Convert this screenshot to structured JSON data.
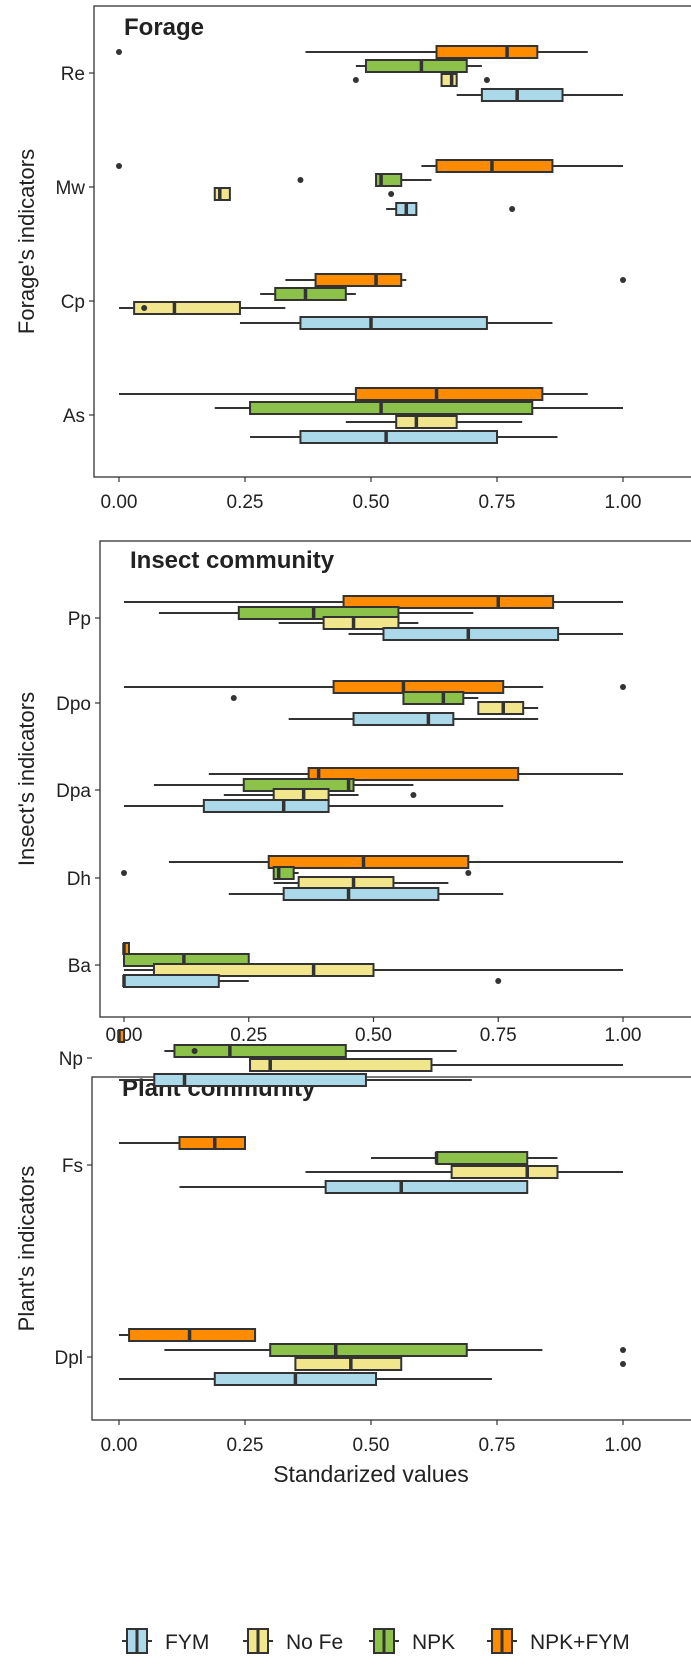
{
  "chart_data": {
    "type": "boxplot",
    "orientation": "horizontal",
    "xlabel": "Standarized values",
    "xlim": [
      0,
      1
    ],
    "x_ticks": [
      "0.00",
      "0.25",
      "0.50",
      "0.75",
      "1.00"
    ],
    "tick_values": [
      0,
      0.25,
      0.5,
      0.75,
      1
    ],
    "legend": {
      "position": "bottom",
      "entries": [
        {
          "name": "FYM",
          "color": "#abd9e9"
        },
        {
          "name": "No Fe",
          "color": "#f1e68c"
        },
        {
          "name": "NPK",
          "color": "#8cc24a"
        },
        {
          "name": "NPK+FYM",
          "color": "#ff8c00"
        }
      ]
    },
    "panels": [
      {
        "title": "Forage",
        "ylabel": "Forage's indicators",
        "categories": [
          {
            "label": "Re",
            "boxes": [
              {
                "group": "NPK+FYM",
                "whisker_low": 0.37,
                "q1": 0.63,
                "median": 0.77,
                "q3": 0.83,
                "whisker_high": 0.93,
                "outliers": [
                  0.0
                ]
              },
              {
                "group": "NPK",
                "whisker_low": 0.47,
                "q1": 0.49,
                "median": 0.6,
                "q3": 0.69,
                "whisker_high": 0.72,
                "outliers": []
              },
              {
                "group": "No Fe",
                "whisker_low": 0.64,
                "q1": 0.64,
                "median": 0.66,
                "q3": 0.67,
                "whisker_high": 0.67,
                "outliers": [
                  0.47,
                  0.73
                ]
              },
              {
                "group": "FYM",
                "whisker_low": 0.67,
                "q1": 0.72,
                "median": 0.79,
                "q3": 0.88,
                "whisker_high": 1.0,
                "outliers": []
              }
            ]
          },
          {
            "label": "Mw",
            "boxes": [
              {
                "group": "NPK+FYM",
                "whisker_low": 0.6,
                "q1": 0.63,
                "median": 0.74,
                "q3": 0.86,
                "whisker_high": 1.0,
                "outliers": [
                  0.0
                ]
              },
              {
                "group": "NPK",
                "whisker_low": 0.51,
                "q1": 0.51,
                "median": 0.52,
                "q3": 0.56,
                "whisker_high": 0.62,
                "outliers": [
                  0.36
                ]
              },
              {
                "group": "No Fe",
                "whisker_low": 0.19,
                "q1": 0.19,
                "median": 0.2,
                "q3": 0.22,
                "whisker_high": 0.22,
                "outliers": [
                  0.54
                ]
              },
              {
                "group": "FYM",
                "whisker_low": 0.53,
                "q1": 0.55,
                "median": 0.57,
                "q3": 0.59,
                "whisker_high": 0.59,
                "outliers": [
                  0.78
                ]
              }
            ]
          },
          {
            "label": "Cp",
            "boxes": [
              {
                "group": "NPK+FYM",
                "whisker_low": 0.33,
                "q1": 0.39,
                "median": 0.51,
                "q3": 0.56,
                "whisker_high": 0.57,
                "outliers": [
                  1.0
                ]
              },
              {
                "group": "NPK",
                "whisker_low": 0.28,
                "q1": 0.31,
                "median": 0.37,
                "q3": 0.45,
                "whisker_high": 0.47,
                "outliers": []
              },
              {
                "group": "No Fe",
                "whisker_low": 0.0,
                "q1": 0.03,
                "median": 0.11,
                "q3": 0.24,
                "whisker_high": 0.33,
                "outliers": [
                  0.05
                ]
              },
              {
                "group": "FYM",
                "whisker_low": 0.24,
                "q1": 0.36,
                "median": 0.5,
                "q3": 0.73,
                "whisker_high": 0.86,
                "outliers": []
              }
            ]
          },
          {
            "label": "As",
            "boxes": [
              {
                "group": "NPK+FYM",
                "whisker_low": 0.0,
                "q1": 0.47,
                "median": 0.63,
                "q3": 0.84,
                "whisker_high": 0.93,
                "outliers": []
              },
              {
                "group": "NPK",
                "whisker_low": 0.19,
                "q1": 0.26,
                "median": 0.52,
                "q3": 0.82,
                "whisker_high": 1.0,
                "outliers": []
              },
              {
                "group": "No Fe",
                "whisker_low": 0.45,
                "q1": 0.55,
                "median": 0.59,
                "q3": 0.67,
                "whisker_high": 0.8,
                "outliers": []
              },
              {
                "group": "FYM",
                "whisker_low": 0.26,
                "q1": 0.36,
                "median": 0.53,
                "q3": 0.75,
                "whisker_high": 0.87,
                "outliers": []
              }
            ]
          }
        ]
      },
      {
        "title": "Insect community",
        "ylabel": "Insect's indicators",
        "categories": [
          {
            "label": "Pp",
            "boxes": [
              {
                "group": "NPK+FYM",
                "whisker_low": 0.0,
                "q1": 0.44,
                "median": 0.75,
                "q3": 0.86,
                "whisker_high": 1.0,
                "outliers": []
              },
              {
                "group": "NPK",
                "whisker_low": 0.07,
                "q1": 0.23,
                "median": 0.38,
                "q3": 0.55,
                "whisker_high": 0.7,
                "outliers": []
              },
              {
                "group": "No Fe",
                "whisker_low": 0.31,
                "q1": 0.4,
                "median": 0.46,
                "q3": 0.55,
                "whisker_high": 0.59,
                "outliers": []
              },
              {
                "group": "FYM",
                "whisker_low": 0.45,
                "q1": 0.52,
                "median": 0.69,
                "q3": 0.87,
                "whisker_high": 1.0,
                "outliers": []
              }
            ]
          },
          {
            "label": "Dpo",
            "boxes": [
              {
                "group": "NPK+FYM",
                "whisker_low": 0.0,
                "q1": 0.42,
                "median": 0.56,
                "q3": 0.76,
                "whisker_high": 0.84,
                "outliers": [
                  1.0
                ]
              },
              {
                "group": "NPK",
                "whisker_low": 0.56,
                "q1": 0.56,
                "median": 0.64,
                "q3": 0.68,
                "whisker_high": 0.71,
                "outliers": [
                  0.22
                ]
              },
              {
                "group": "No Fe",
                "whisker_low": 0.71,
                "q1": 0.71,
                "median": 0.76,
                "q3": 0.8,
                "whisker_high": 0.83,
                "outliers": []
              },
              {
                "group": "FYM",
                "whisker_low": 0.33,
                "q1": 0.46,
                "median": 0.61,
                "q3": 0.66,
                "whisker_high": 0.83,
                "outliers": []
              }
            ]
          },
          {
            "label": "Dpa",
            "boxes": [
              {
                "group": "NPK+FYM",
                "whisker_low": 0.17,
                "q1": 0.37,
                "median": 0.39,
                "q3": 0.79,
                "whisker_high": 1.0,
                "outliers": []
              },
              {
                "group": "NPK",
                "whisker_low": 0.06,
                "q1": 0.24,
                "median": 0.45,
                "q3": 0.46,
                "whisker_high": 0.58,
                "outliers": []
              },
              {
                "group": "No Fe",
                "whisker_low": 0.2,
                "q1": 0.3,
                "median": 0.36,
                "q3": 0.41,
                "whisker_high": 0.47,
                "outliers": [
                  0.58
                ]
              },
              {
                "group": "FYM",
                "whisker_low": 0.0,
                "q1": 0.16,
                "median": 0.32,
                "q3": 0.41,
                "whisker_high": 0.76,
                "outliers": []
              }
            ]
          },
          {
            "label": "Dh",
            "boxes": [
              {
                "group": "NPK+FYM",
                "whisker_low": 0.09,
                "q1": 0.29,
                "median": 0.48,
                "q3": 0.69,
                "whisker_high": 1.0,
                "outliers": []
              },
              {
                "group": "NPK",
                "whisker_low": 0.3,
                "q1": 0.3,
                "median": 0.31,
                "q3": 0.34,
                "whisker_high": 0.35,
                "outliers": [
                  0.0,
                  0.69
                ]
              },
              {
                "group": "No Fe",
                "whisker_low": 0.3,
                "q1": 0.35,
                "median": 0.46,
                "q3": 0.54,
                "whisker_high": 0.65,
                "outliers": []
              },
              {
                "group": "FYM",
                "whisker_low": 0.21,
                "q1": 0.32,
                "median": 0.45,
                "q3": 0.63,
                "whisker_high": 0.76,
                "outliers": []
              }
            ]
          },
          {
            "label": "Ba",
            "boxes": [
              {
                "group": "NPK+FYM",
                "whisker_low": 0.0,
                "q1": 0.0,
                "median": 0.0,
                "q3": 0.01,
                "whisker_high": 0.01,
                "outliers": []
              },
              {
                "group": "NPK",
                "whisker_low": 0.0,
                "q1": 0.0,
                "median": 0.12,
                "q3": 0.25,
                "whisker_high": 0.25,
                "outliers": []
              },
              {
                "group": "No Fe",
                "whisker_low": 0.0,
                "q1": 0.06,
                "median": 0.38,
                "q3": 0.5,
                "whisker_high": 1.0,
                "outliers": []
              },
              {
                "group": "FYM",
                "whisker_low": 0.0,
                "q1": 0.0,
                "median": 0.0,
                "q3": 0.19,
                "whisker_high": 0.25,
                "outliers": [
                  0.75
                ]
              }
            ]
          }
        ]
      },
      {
        "title": "Plant community",
        "ylabel": "Plant's indicators",
        "categories": [
          {
            "label": "Np",
            "boxes": [
              {
                "group": "NPK+FYM",
                "whisker_low": 0.0,
                "q1": 0.0,
                "median": 0.0,
                "q3": 0.01,
                "whisker_high": 0.01,
                "outliers": []
              },
              {
                "group": "NPK",
                "whisker_low": 0.09,
                "q1": 0.11,
                "median": 0.22,
                "q3": 0.45,
                "whisker_high": 0.67,
                "outliers": [
                  0.15
                ]
              },
              {
                "group": "No Fe",
                "whisker_low": 0.26,
                "q1": 0.26,
                "median": 0.3,
                "q3": 0.62,
                "whisker_high": 1.0,
                "outliers": []
              },
              {
                "group": "FYM",
                "whisker_low": 0.0,
                "q1": 0.07,
                "median": 0.13,
                "q3": 0.49,
                "whisker_high": 0.7,
                "outliers": []
              }
            ]
          },
          {
            "label": "Fs",
            "boxes": [
              {
                "group": "NPK+FYM",
                "whisker_low": 0.0,
                "q1": 0.12,
                "median": 0.19,
                "q3": 0.25,
                "whisker_high": 0.25,
                "outliers": []
              },
              {
                "group": "NPK",
                "whisker_low": 0.5,
                "q1": 0.63,
                "median": 0.63,
                "q3": 0.81,
                "whisker_high": 0.87,
                "outliers": []
              },
              {
                "group": "No Fe",
                "whisker_low": 0.37,
                "q1": 0.66,
                "median": 0.81,
                "q3": 0.87,
                "whisker_high": 1.0,
                "outliers": []
              },
              {
                "group": "FYM",
                "whisker_low": 0.12,
                "q1": 0.41,
                "median": 0.56,
                "q3": 0.81,
                "whisker_high": 0.81,
                "outliers": []
              }
            ]
          },
          {
            "label": "Dpl",
            "boxes": [
              {
                "group": "NPK+FYM",
                "whisker_low": 0.0,
                "q1": 0.02,
                "median": 0.14,
                "q3": 0.27,
                "whisker_high": 0.27,
                "outliers": []
              },
              {
                "group": "NPK",
                "whisker_low": 0.09,
                "q1": 0.3,
                "median": 0.43,
                "q3": 0.69,
                "whisker_high": 0.84,
                "outliers": [
                  1.0
                ]
              },
              {
                "group": "No Fe",
                "whisker_low": 0.35,
                "q1": 0.35,
                "median": 0.46,
                "q3": 0.56,
                "whisker_high": 0.56,
                "outliers": [
                  1.0
                ]
              },
              {
                "group": "FYM",
                "whisker_low": 0.0,
                "q1": 0.19,
                "median": 0.35,
                "q3": 0.51,
                "whisker_high": 0.74,
                "outliers": []
              }
            ]
          }
        ]
      }
    ]
  }
}
